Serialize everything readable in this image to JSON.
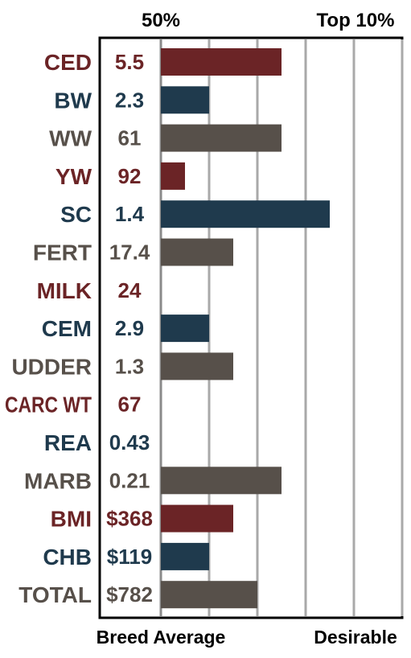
{
  "chart_data": {
    "type": "bar",
    "orientation": "horizontal",
    "header_left": "50%",
    "header_right": "Top 10%",
    "footer_left": "Breed Average",
    "footer_right": "Desirable",
    "grid": true,
    "xlim": [
      0,
      5
    ],
    "categories": [
      "CED",
      "BW",
      "WW",
      "YW",
      "SC",
      "FERT",
      "MILK",
      "CEM",
      "UDDER",
      "CARC WT",
      "REA",
      "MARB",
      "BMI",
      "CHB",
      "TOTAL"
    ],
    "value_labels": [
      "5.5",
      "2.3",
      "61",
      "92",
      "1.4",
      "17.4",
      "24",
      "2.9",
      "1.3",
      "67",
      "0.43",
      "0.21",
      "$368",
      "$119",
      "$782"
    ],
    "bar_values": [
      2.5,
      1.0,
      2.5,
      0.5,
      3.5,
      1.5,
      0,
      1.0,
      1.5,
      0,
      0,
      2.5,
      1.5,
      1.0,
      2.0
    ],
    "category_colors": [
      "#6b2426",
      "#1f3a4d",
      "#57504a",
      "#6b2426",
      "#1f3a4d",
      "#57504a",
      "#6b2426",
      "#1f3a4d",
      "#57504a",
      "#6b2426",
      "#1f3a4d",
      "#57504a",
      "#6b2426",
      "#1f3a4d",
      "#57504a"
    ]
  }
}
